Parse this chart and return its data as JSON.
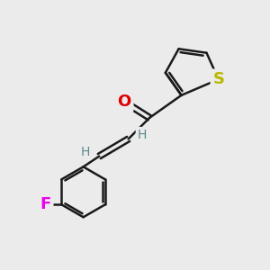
{
  "bg_color": "#ebebeb",
  "bond_color": "#1a1a1a",
  "bond_width": 1.8,
  "atom_labels": {
    "O": {
      "color": "#dd0000",
      "fontsize": 13,
      "fontweight": "bold"
    },
    "S": {
      "color": "#b8b800",
      "fontsize": 13,
      "fontweight": "bold"
    },
    "F": {
      "color": "#ee00ee",
      "fontsize": 13,
      "fontweight": "bold"
    },
    "H": {
      "color": "#5a8a8a",
      "fontsize": 10,
      "fontweight": "normal"
    }
  },
  "figsize": [
    3.0,
    3.0
  ],
  "dpi": 100
}
